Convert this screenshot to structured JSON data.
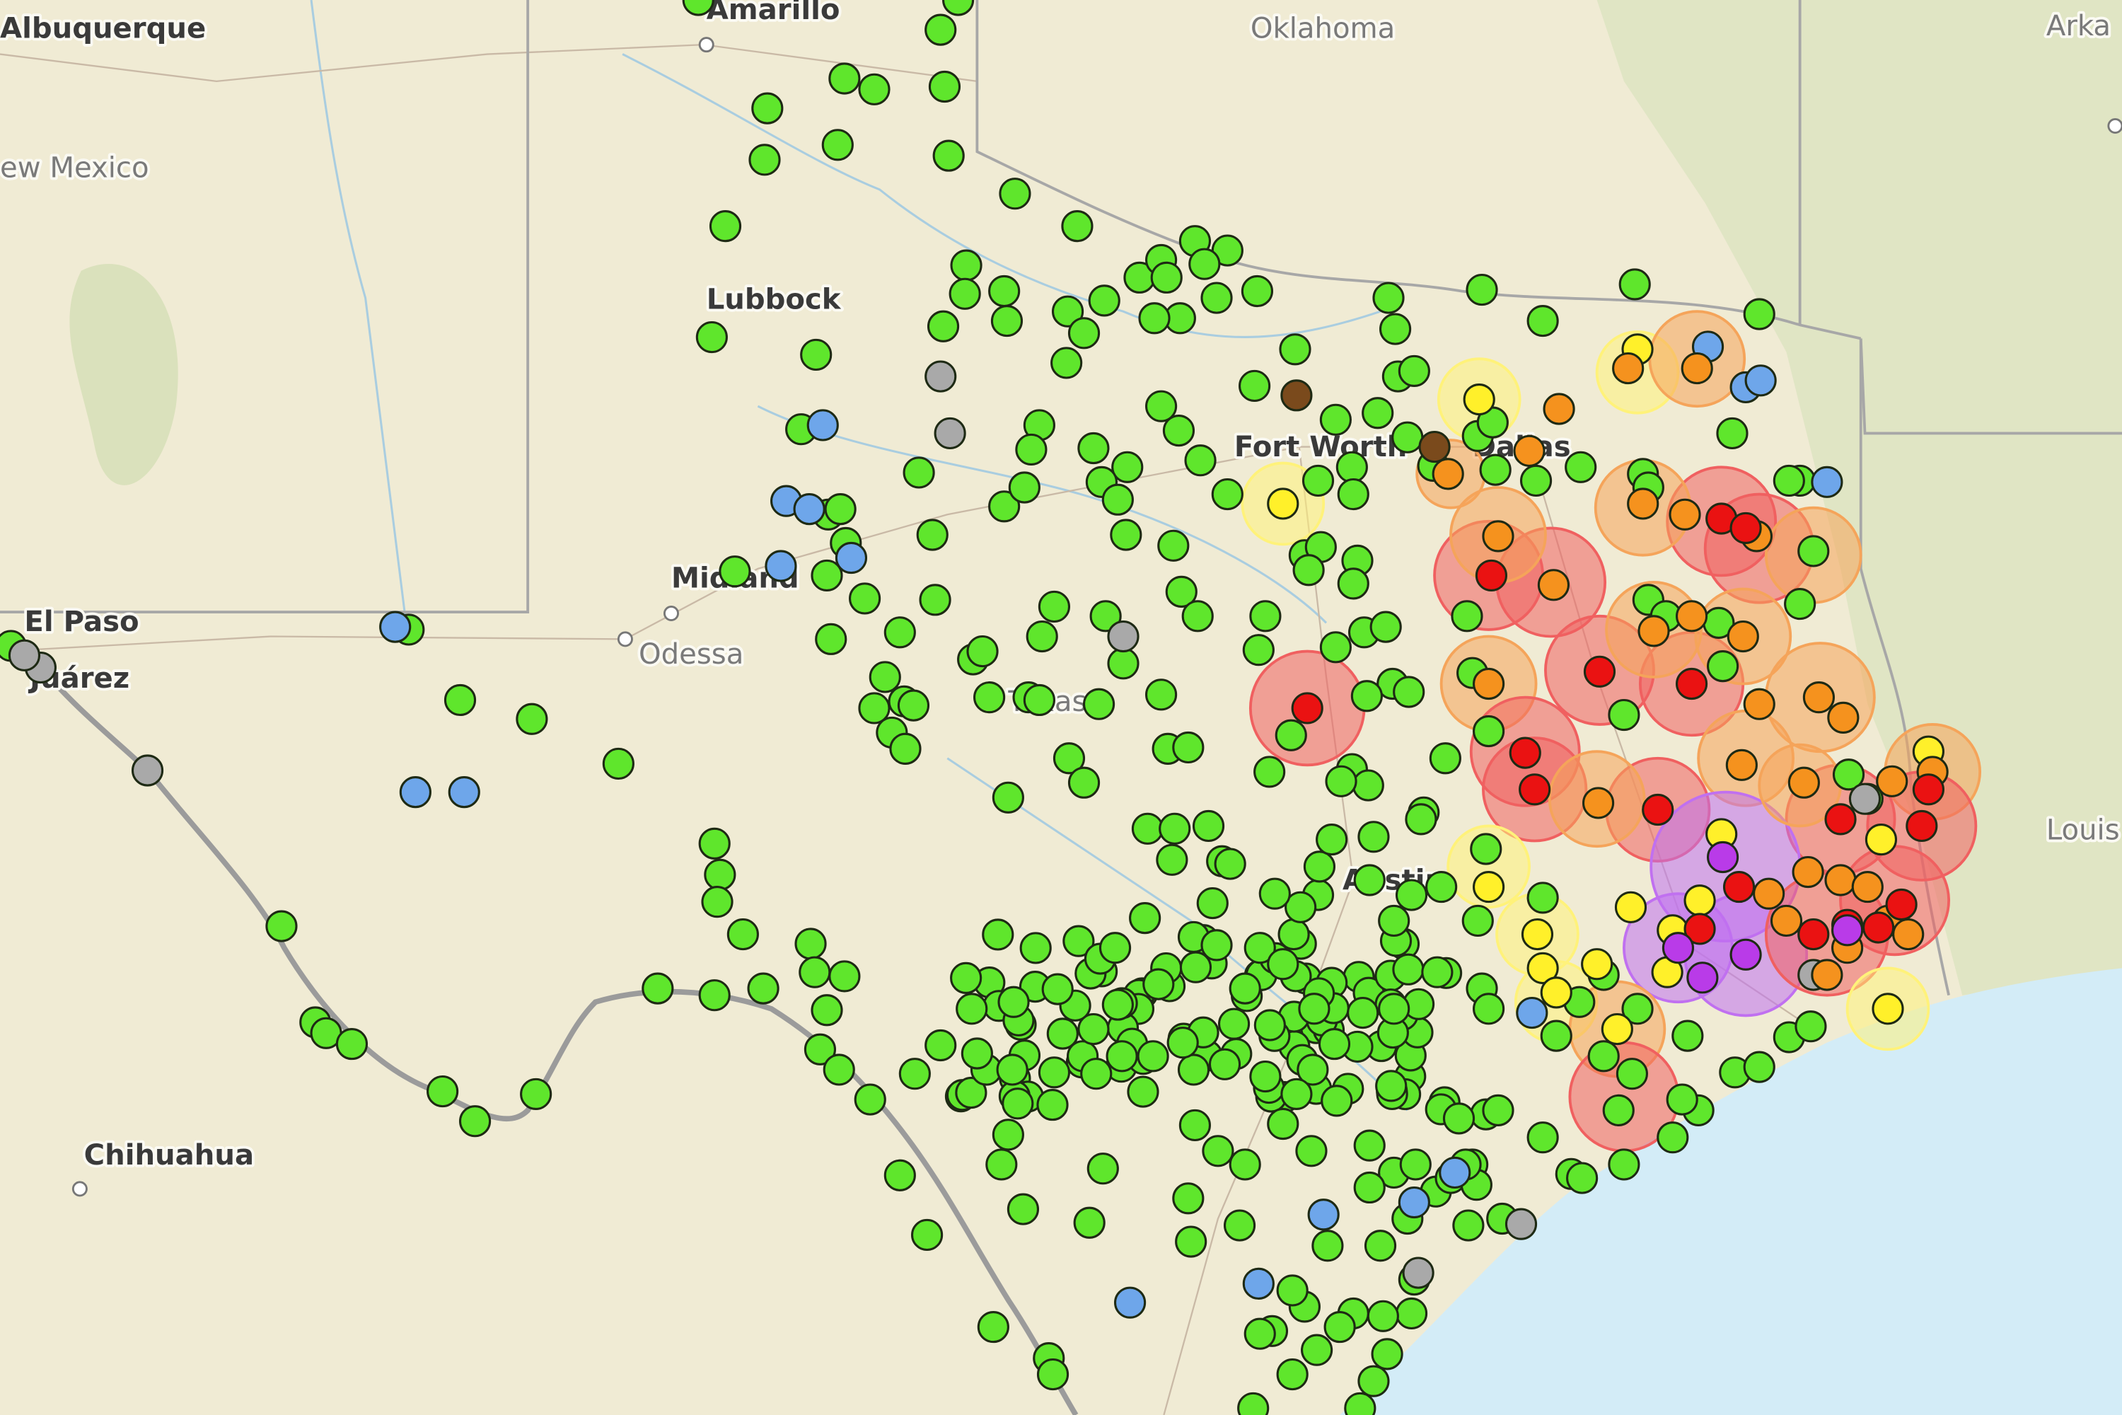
{
  "map": {
    "labels": [
      "Albuquerque",
      "Amarillo",
      "Oklahoma",
      "Arka",
      "ew Mexico",
      "Lubbock",
      "Fort Worth",
      "Dallas",
      "Midland",
      "Odessa",
      "El Paso",
      "Juárez",
      "Texas",
      "Austin",
      "Chihuahua",
      "Louis"
    ]
  }
}
